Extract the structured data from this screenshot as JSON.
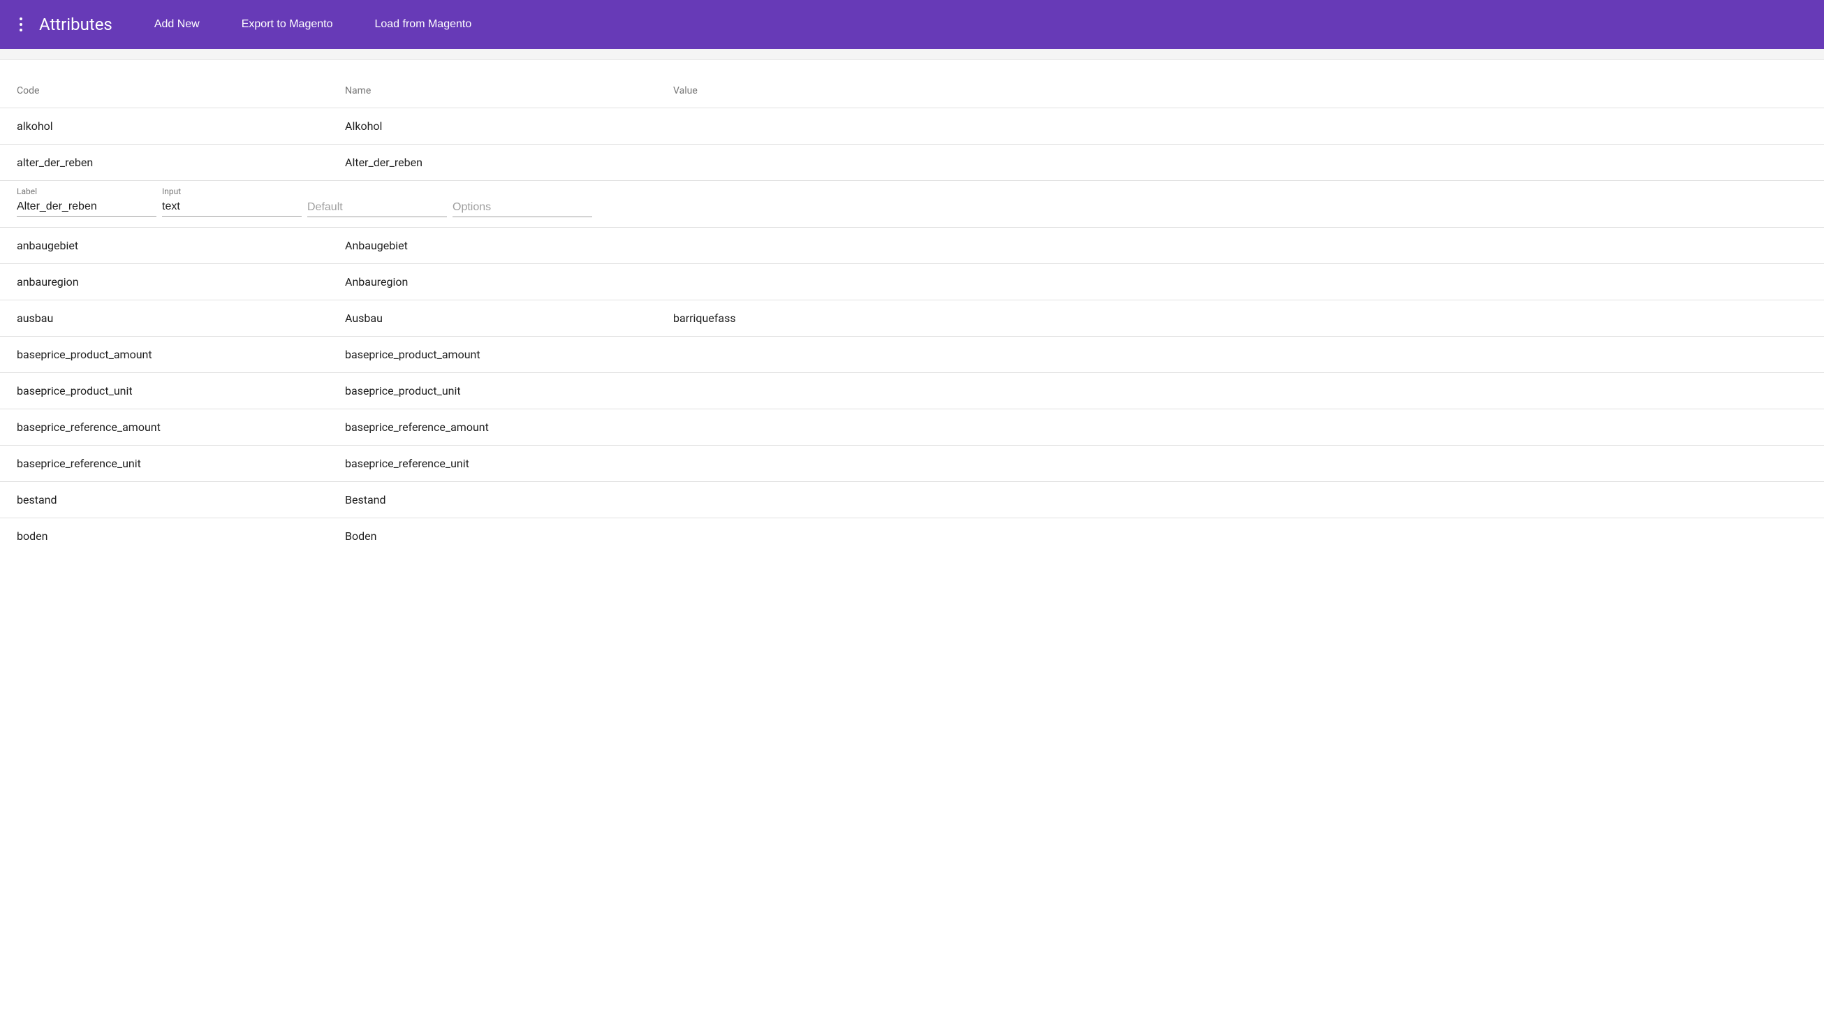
{
  "toolbar": {
    "title": "Attributes",
    "actions": {
      "add_new": "Add New",
      "export": "Export to Magento",
      "load": "Load from Magento"
    }
  },
  "table": {
    "headers": {
      "code": "Code",
      "name": "Name",
      "value": "Value"
    },
    "rows": [
      {
        "code": "alkohol",
        "name": "Alkohol",
        "value": ""
      },
      {
        "code": "alter_der_reben",
        "name": "Alter_der_reben",
        "value": ""
      },
      {
        "code": "anbaugebiet",
        "name": "Anbaugebiet",
        "value": ""
      },
      {
        "code": "anbauregion",
        "name": "Anbauregion",
        "value": ""
      },
      {
        "code": "ausbau",
        "name": "Ausbau",
        "value": "barriquefass"
      },
      {
        "code": "baseprice_product_amount",
        "name": "baseprice_product_amount",
        "value": ""
      },
      {
        "code": "baseprice_product_unit",
        "name": "baseprice_product_unit",
        "value": ""
      },
      {
        "code": "baseprice_reference_amount",
        "name": "baseprice_reference_amount",
        "value": ""
      },
      {
        "code": "baseprice_reference_unit",
        "name": "baseprice_reference_unit",
        "value": ""
      },
      {
        "code": "bestand",
        "name": "Bestand",
        "value": ""
      },
      {
        "code": "boden",
        "name": "Boden",
        "value": ""
      }
    ]
  },
  "expanded": {
    "label_caption": "Label",
    "input_caption": "Input",
    "label_value": "Alter_der_reben",
    "input_value": "text",
    "default_placeholder": "Default",
    "options_placeholder": "Options"
  },
  "colors": {
    "primary": "#673ab7",
    "text": "#212121",
    "text_muted": "#757575",
    "border": "#e0e0e0"
  }
}
